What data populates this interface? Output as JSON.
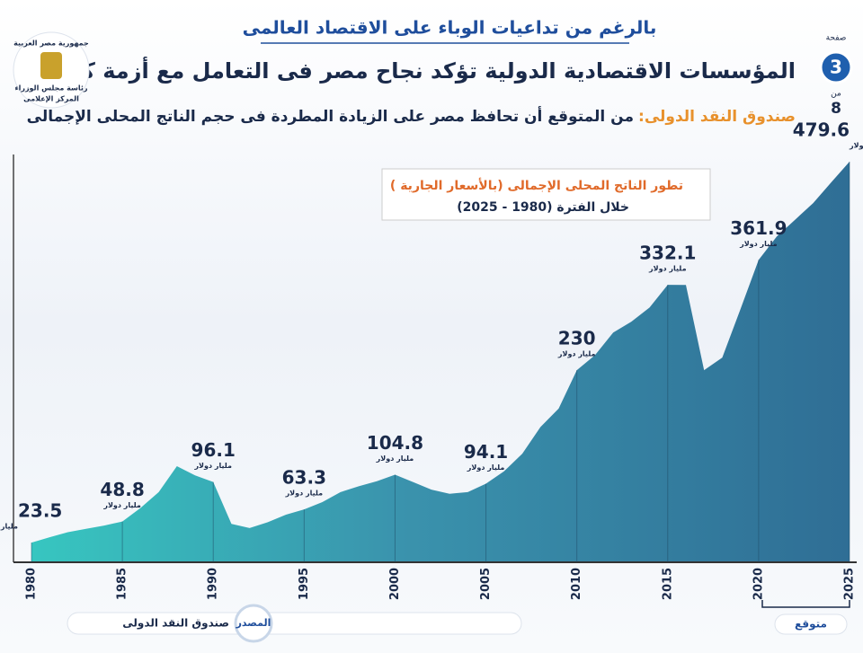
{
  "kicker": "بالرغم من تداعيات الوباء على الاقتصاد العالمى",
  "headline": "المؤسسات الاقتصادية الدولية تؤكد نجاح مصر فى التعامل مع أزمة كورونا",
  "subheadline_source": "صندوق النقد الدولى:",
  "subheadline": "من المتوقع أن تحافظ مصر على الزيادة المطردة فى حجم الناتج المحلى الإجمالى",
  "page": {
    "label": "صفحة",
    "number": "3",
    "of": "من",
    "total": "8"
  },
  "logo": {
    "line1": "جمهورية مصر العربية",
    "line2": "رئاسة مجلس الوزراء",
    "line3": "المركز الإعلامى"
  },
  "chart_data": {
    "type": "area",
    "title": "تطور الناتج المحلى الإجمالى (بالأسعار الجارية )",
    "subtitle": "خلال الفترة (1980 - 2025)",
    "value_unit": "مليار دولار",
    "x": [
      1980,
      1981,
      1982,
      1983,
      1984,
      1985,
      1986,
      1987,
      1988,
      1989,
      1990,
      1991,
      1992,
      1993,
      1994,
      1995,
      1996,
      1997,
      1998,
      1999,
      2000,
      2001,
      2002,
      2003,
      2004,
      2005,
      2006,
      2007,
      2008,
      2009,
      2010,
      2011,
      2012,
      2013,
      2014,
      2015,
      2016,
      2017,
      2018,
      2019,
      2020,
      2021,
      2022,
      2023,
      2024,
      2025
    ],
    "values": [
      23.5,
      30,
      36,
      40,
      44,
      48.8,
      65,
      84,
      115,
      104,
      96.1,
      46,
      41,
      48,
      57,
      63.3,
      72,
      84,
      91,
      97,
      104.8,
      96,
      87,
      82,
      84,
      94.1,
      109,
      130,
      162,
      184,
      230,
      248,
      275,
      288,
      305,
      332.1,
      332,
      230,
      245,
      303,
      361.9,
      390,
      410,
      430,
      455,
      479.6
    ],
    "value_labels": [
      "23.5",
      null,
      null,
      null,
      null,
      "48.8",
      null,
      null,
      null,
      null,
      "96.1",
      null,
      null,
      null,
      null,
      "63.3",
      null,
      null,
      null,
      null,
      "104.8",
      null,
      null,
      null,
      null,
      "94.1",
      null,
      null,
      null,
      null,
      "230",
      null,
      null,
      null,
      null,
      "332.1",
      null,
      null,
      null,
      null,
      "361.9",
      null,
      null,
      null,
      null,
      "479.6"
    ],
    "xlim": [
      1980,
      2025
    ],
    "xticks": [
      1980,
      1985,
      1990,
      1995,
      2000,
      2005,
      2010,
      2015,
      2020,
      2025
    ],
    "ylim": [
      0,
      500
    ],
    "forecast_label": "متوقع",
    "source_label": "المصدر",
    "source": "صندوق النقد الدولى"
  }
}
